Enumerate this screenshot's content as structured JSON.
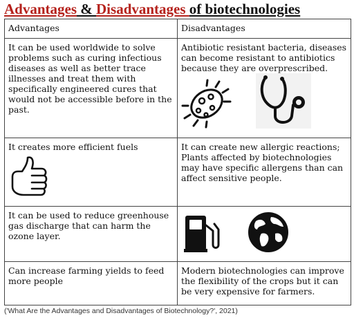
{
  "title": {
    "part1": "Advantages",
    "amp": " & ",
    "part2": "Disadvantages ",
    "part3": "of biotechnologies"
  },
  "table": {
    "headers": [
      "Advantages",
      "Disadvantages"
    ],
    "rows": [
      {
        "advantage": "It can be used worldwide to solve problems such as curing infectious diseases as well as better trace illnesses and treat them with specifically engineered cures that would not be accessible before in the past.",
        "disadvantage": "Antibiotic resistant bacteria, diseases can become resistant to antibiotics because they are overprescribed.",
        "disadvantage_icons": [
          "bacteria-icon",
          "stethoscope-icon"
        ]
      },
      {
        "advantage": "It creates more efficient fuels",
        "advantage_icons": [
          "thumbs-up-icon"
        ],
        "disadvantage": "It can create new allergic reactions; Plants affected by biotechnologies may have specific allergens than can affect sensitive people."
      },
      {
        "advantage": "It can be used to reduce greenhouse gas discharge that can harm the ozone layer.",
        "disadvantage": "",
        "disadvantage_icons": [
          "fuel-pump-icon",
          "globe-icon"
        ]
      },
      {
        "advantage": "Can increase farming yields to feed more people",
        "disadvantage": "Modern biotechnologies can improve the flexibility of the crops  but it can be very expensive for farmers."
      }
    ]
  },
  "citation": "('What Are the Advantages and Disadvantages of Biotechnology?', 2021)"
}
